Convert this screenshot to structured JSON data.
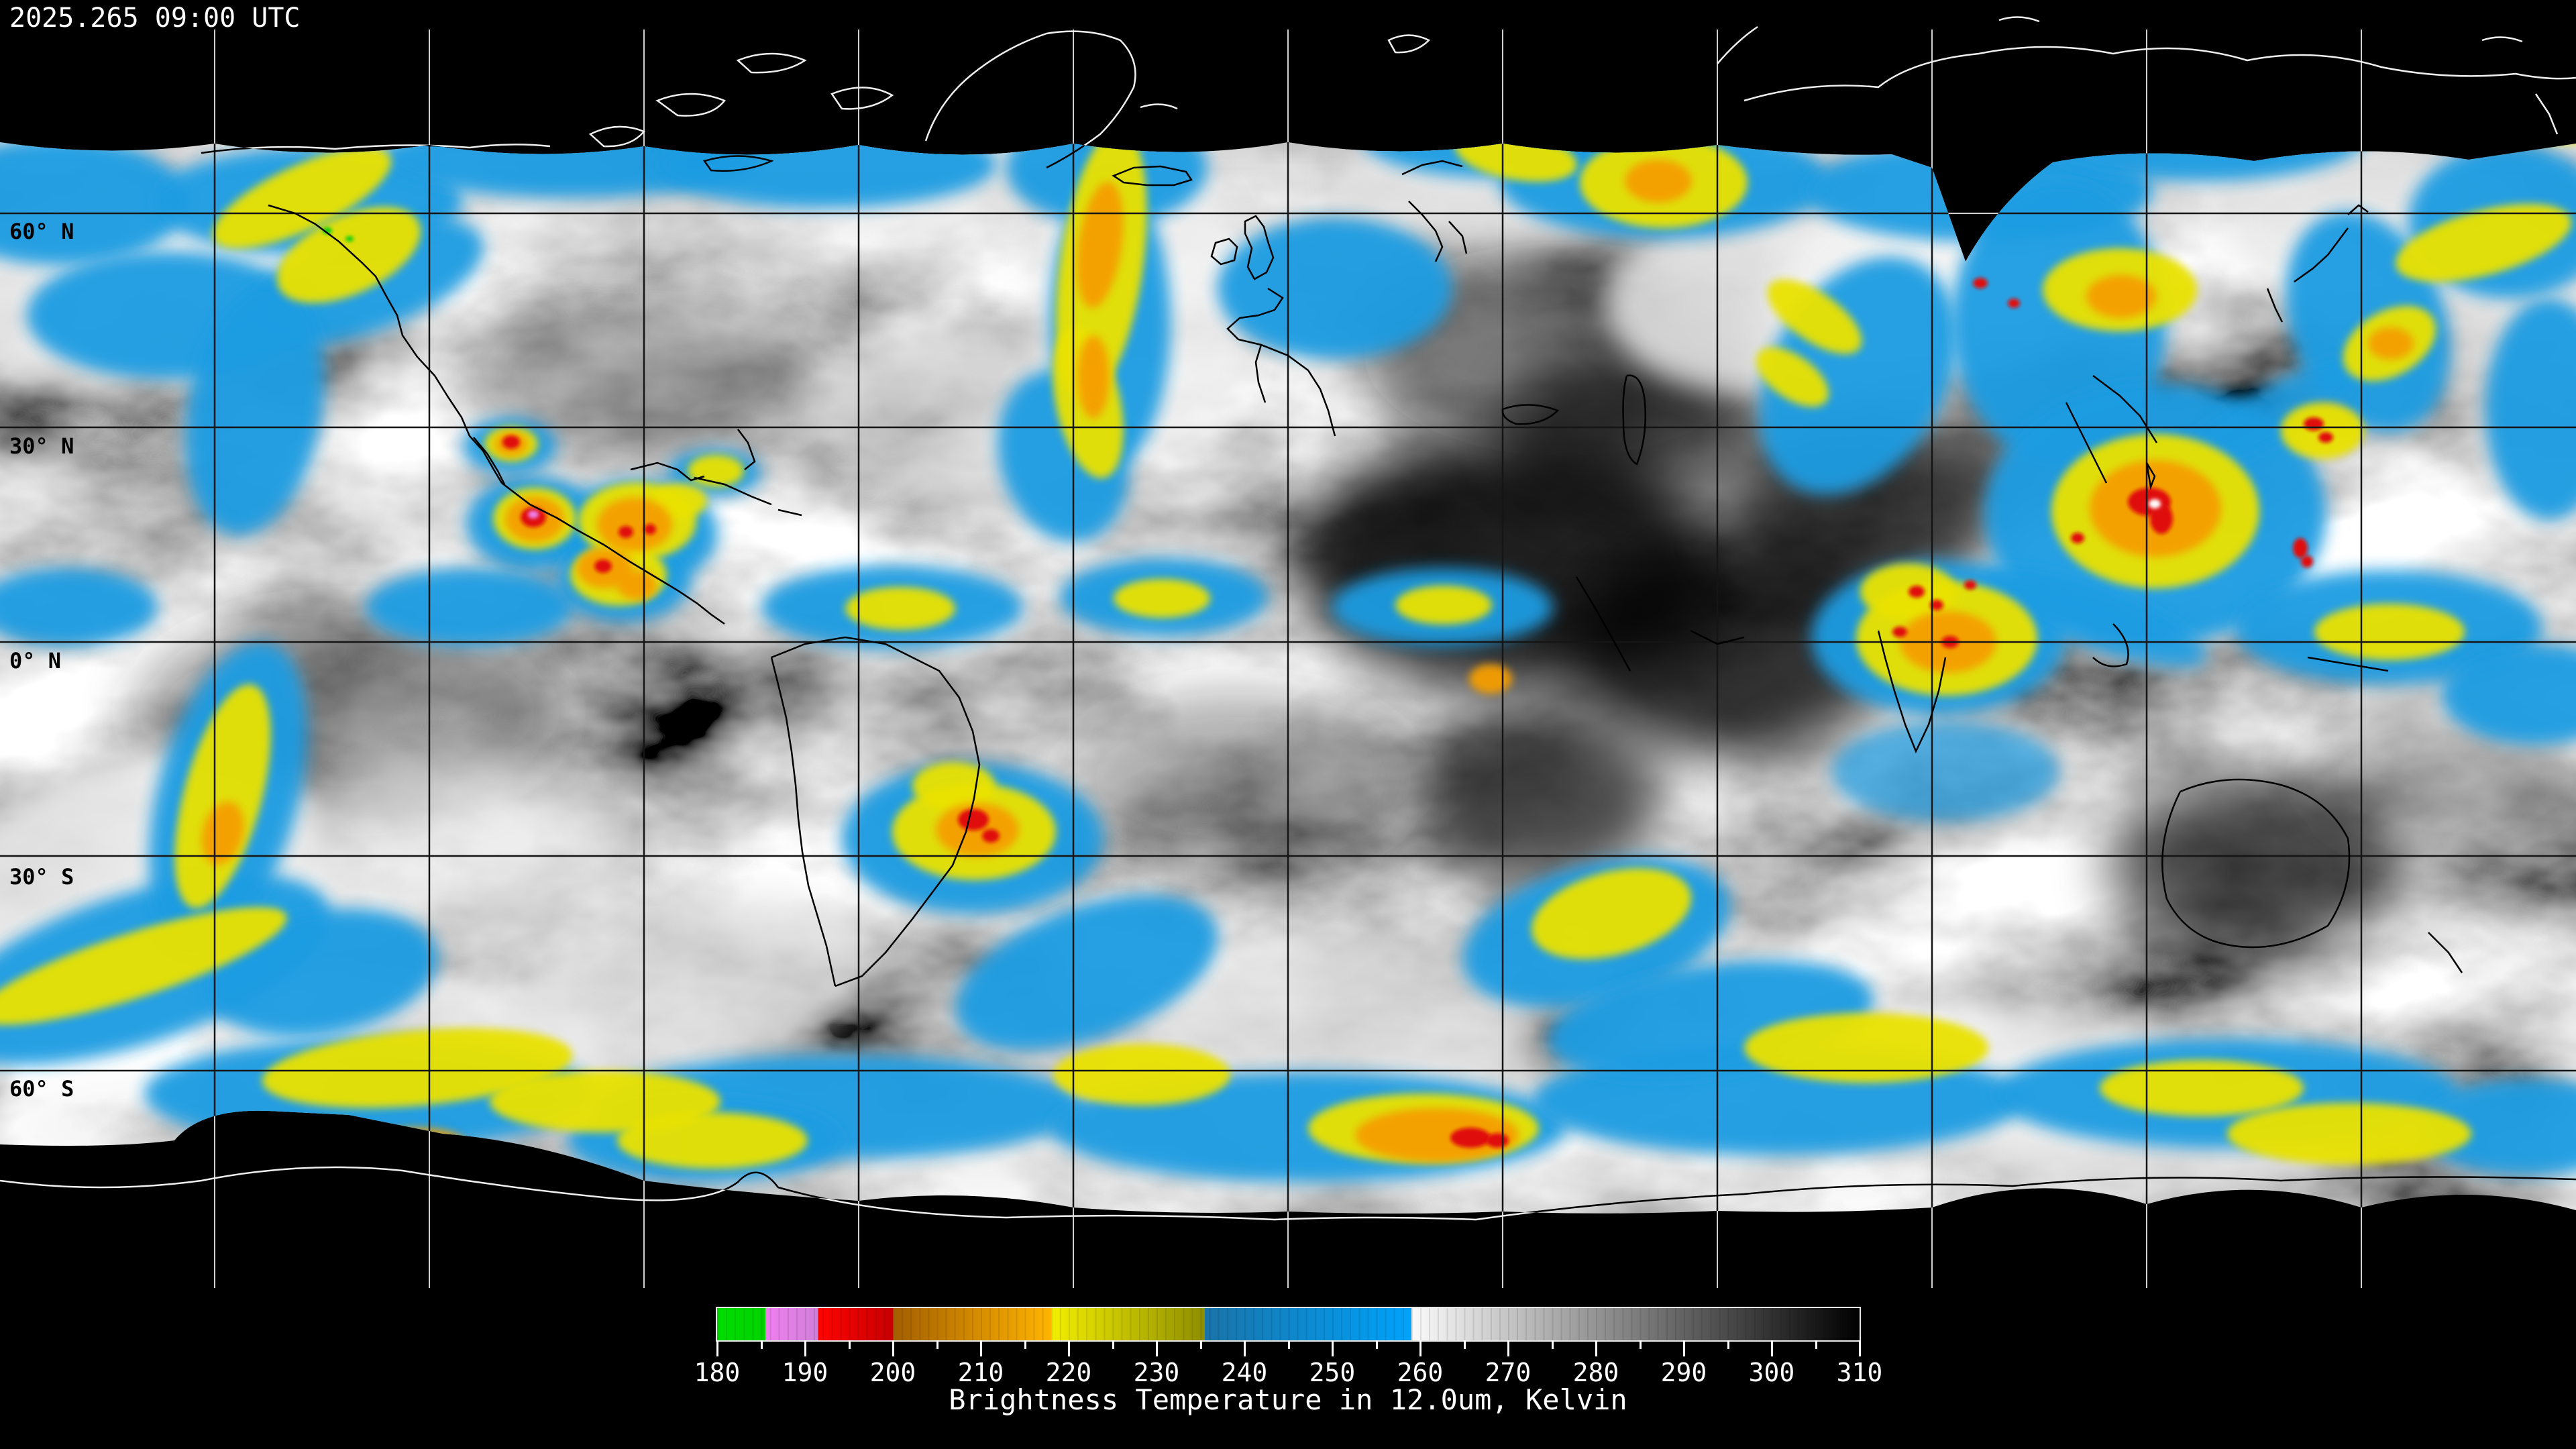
{
  "header": {
    "timestamp": "2025.265 09:00 UTC"
  },
  "map": {
    "latitude_labels": [
      {
        "text": "60° N"
      },
      {
        "text": "30° N"
      },
      {
        "text": "0° N"
      },
      {
        "text": "30° S"
      },
      {
        "text": "60° S"
      }
    ],
    "gridline_longitude_step_deg": 30,
    "gridline_latitude_step_deg": 30
  },
  "colorbar": {
    "caption": "Brightness Temperature in 12.0um, Kelvin",
    "unit": "Kelvin",
    "min": 180,
    "max": 310,
    "major_tick_step": 10,
    "minor_tick_step": 5,
    "tick_labels": [
      "180",
      "190",
      "200",
      "210",
      "220",
      "230",
      "240",
      "250",
      "260",
      "270",
      "280",
      "290",
      "300",
      "310"
    ],
    "segments": [
      {
        "name": "green",
        "from": 180,
        "to": 185.5,
        "color_start": "#00dc00",
        "color_end": "#00d400"
      },
      {
        "name": "violet",
        "from": 185.5,
        "to": 191.5,
        "color_start": "#f07ff0",
        "color_end": "#cf7fd8"
      },
      {
        "name": "red",
        "from": 191.5,
        "to": 200,
        "color_start": "#ff0400",
        "color_end": "#c60000"
      },
      {
        "name": "orange-brown",
        "from": 200,
        "to": 218,
        "color_start": "#a35e00",
        "color_end": "#ffb400"
      },
      {
        "name": "yellow-olive",
        "from": 218,
        "to": 235.5,
        "color_start": "#f2ee00",
        "color_end": "#8e8e00"
      },
      {
        "name": "blue",
        "from": 235.5,
        "to": 259,
        "color_start": "#1a73a8",
        "color_end": "#00a2fa"
      },
      {
        "name": "grayscale",
        "from": 259,
        "to": 310,
        "color_start": "#fbfbfb",
        "color_end": "#000000"
      }
    ]
  }
}
